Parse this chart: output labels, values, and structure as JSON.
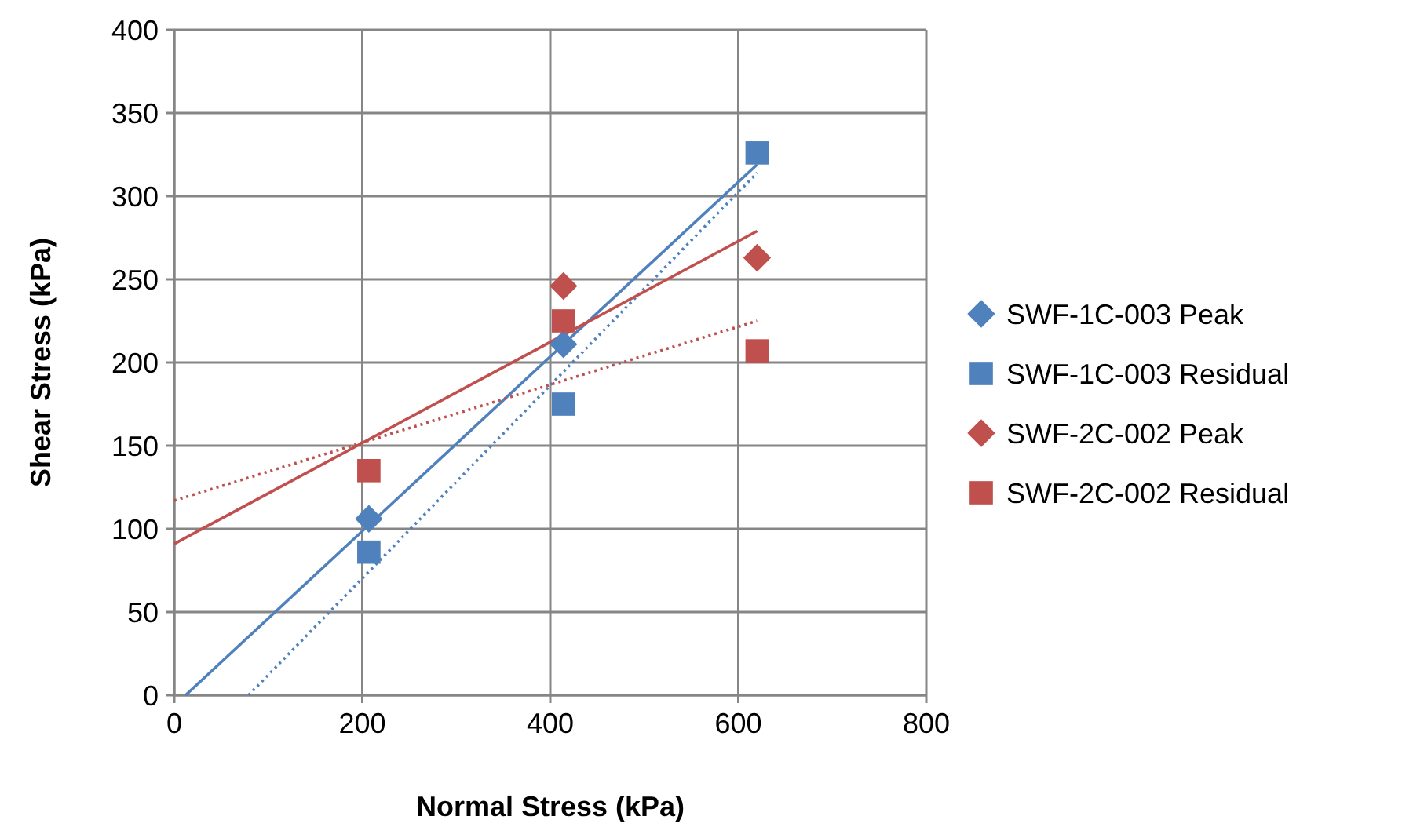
{
  "chart_data": {
    "type": "scatter",
    "xlabel": "Normal Stress (kPa)",
    "ylabel": "Shear Stress (kPa)",
    "xlim": [
      0,
      800
    ],
    "xticks": [
      0,
      200,
      400,
      600,
      800
    ],
    "ylim": [
      0,
      400
    ],
    "yticks": [
      0,
      50,
      100,
      150,
      200,
      250,
      300,
      350,
      400
    ],
    "grid": true,
    "legend": "right",
    "series": [
      {
        "name": "SWF-1C-003 Peak",
        "color": "#4f81bd",
        "marker": "diamond",
        "x": [
          207,
          414
        ],
        "values": [
          106,
          211
        ]
      },
      {
        "name": "SWF-1C-003 Residual",
        "color": "#4f81bd",
        "marker": "square",
        "x": [
          207,
          414,
          620
        ],
        "values": [
          86,
          175,
          326
        ]
      },
      {
        "name": "SWF-2C-002 Peak",
        "color": "#c0504d",
        "marker": "diamond",
        "x": [
          414,
          620
        ],
        "values": [
          246,
          263
        ]
      },
      {
        "name": "SWF-2C-002 Residual",
        "color": "#c0504d",
        "marker": "square",
        "x": [
          207,
          414,
          620
        ],
        "values": [
          135,
          225,
          207
        ]
      },
      {
        "type": "line",
        "color": "#4f81bd",
        "line_style": "solid",
        "x": [
          12,
          620
        ],
        "values": [
          0,
          319
        ]
      },
      {
        "type": "line",
        "color": "#4f81bd",
        "line_style": "dotted",
        "x": [
          79,
          620
        ],
        "values": [
          0,
          314
        ]
      },
      {
        "type": "line",
        "color": "#c0504d",
        "line_style": "solid",
        "x": [
          0,
          620
        ],
        "values": [
          91,
          279
        ]
      },
      {
        "type": "line",
        "color": "#c0504d",
        "line_style": "dotted",
        "x": [
          0,
          620
        ],
        "values": [
          117,
          225
        ]
      }
    ]
  }
}
